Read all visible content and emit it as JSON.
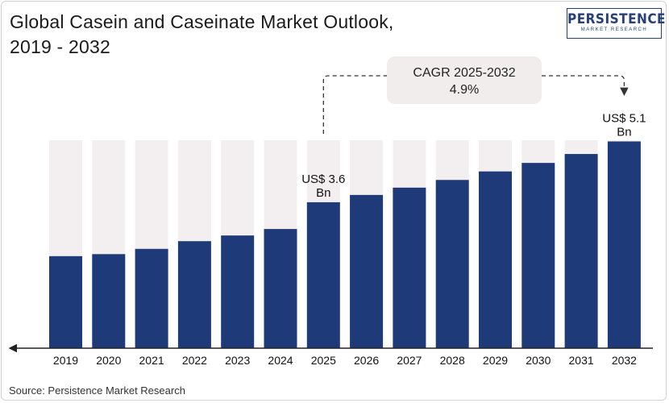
{
  "header": {
    "title_line1": "Global Casein and Caseinate Market Outlook,",
    "title_line2": "2019 - 2032"
  },
  "logo": {
    "name": "PERSISTENCE",
    "tagline": "MARKET RESEARCH",
    "color": "#27407a"
  },
  "footer": {
    "source": "Source: Persistence Market Research"
  },
  "chart_data": {
    "type": "bar",
    "title": "Global Casein and Caseinate Market Outlook, 2019 - 2032",
    "categories": [
      "2019",
      "2020",
      "2021",
      "2022",
      "2023",
      "2024",
      "2025",
      "2026",
      "2027",
      "2028",
      "2029",
      "2030",
      "2031",
      "2032"
    ],
    "series": [
      {
        "values": [
          2.27,
          2.32,
          2.45,
          2.64,
          2.78,
          2.94,
          3.6,
          3.78,
          3.96,
          4.15,
          4.36,
          4.57,
          4.79,
          5.1
        ]
      }
    ],
    "ylim": [
      0,
      5.6
    ],
    "unit": "US$ Bn",
    "bar_color": "#1f3a78",
    "background_bar_color": "#f3eff0",
    "grid": false,
    "legend": "none",
    "annotations": {
      "value_labels": [
        {
          "category": "2025",
          "line1": "US$ 3.6",
          "line2": "Bn"
        },
        {
          "category": "2032",
          "line1": "US$ 5.1",
          "line2": "Bn"
        }
      ],
      "cagr": {
        "line1": "CAGR 2025-2032",
        "line2": "4.9%",
        "from": "2025",
        "to": "2032"
      }
    }
  }
}
